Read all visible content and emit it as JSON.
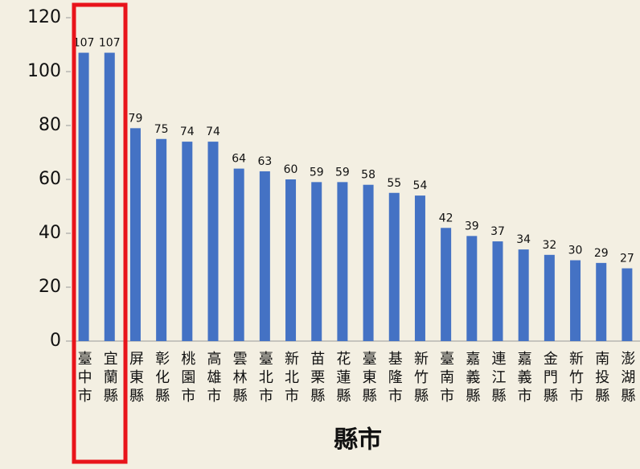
{
  "chart_data": {
    "type": "bar",
    "x_label": "縣市",
    "categories": [
      "臺中市",
      "宜蘭縣",
      "屏東縣",
      "彰化縣",
      "桃園市",
      "高雄市",
      "雲林縣",
      "臺北市",
      "新北市",
      "苗栗縣",
      "花蓮縣",
      "臺東縣",
      "基隆市",
      "新竹縣",
      "臺南市",
      "嘉義縣",
      "連江縣",
      "嘉義市",
      "金門縣",
      "新竹市",
      "南投縣",
      "澎湖縣"
    ],
    "values": [
      107,
      107,
      79,
      75,
      74,
      74,
      64,
      63,
      60,
      59,
      59,
      58,
      55,
      54,
      42,
      39,
      37,
      34,
      32,
      30,
      29,
      27
    ],
    "color": "#4472c4",
    "ylim": [
      0,
      120
    ],
    "yticks": [
      0,
      20,
      40,
      60,
      80,
      100,
      120
    ],
    "grid": false
  }
}
